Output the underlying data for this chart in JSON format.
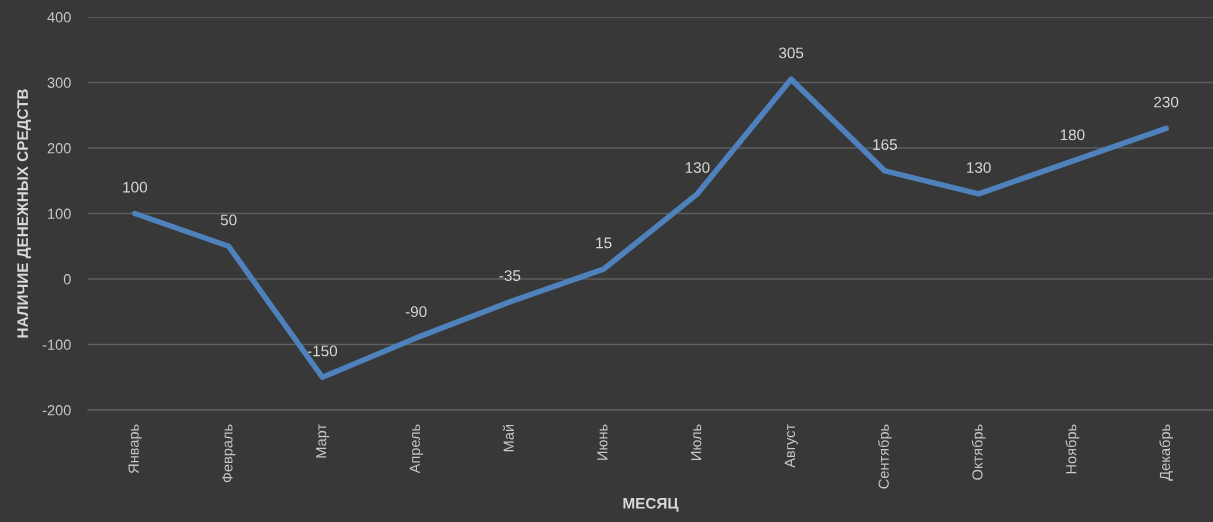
{
  "chart_data": {
    "type": "line",
    "xlabel": "МЕСЯЦ",
    "ylabel": "НАЛИЧИЕ ДЕНЕЖНЫХ СРЕДСТВ",
    "categories": [
      "Январь",
      "Февраль",
      "Март",
      "Апрель",
      "Май",
      "Июнь",
      "Июль",
      "Август",
      "Сентябрь",
      "Октябрь",
      "Ноябрь",
      "Декабрь"
    ],
    "series": [
      {
        "color": "#4f81bd",
        "values": [
          100,
          50,
          -150,
          -90,
          -35,
          15,
          130,
          305,
          165,
          130,
          180,
          230
        ]
      }
    ],
    "ylim": [
      -200,
      400
    ],
    "yticks": [
      -200,
      -100,
      0,
      100,
      200,
      300,
      400
    ],
    "grid": "y",
    "data_labels": true,
    "marker": "none",
    "line_style": "solid"
  }
}
